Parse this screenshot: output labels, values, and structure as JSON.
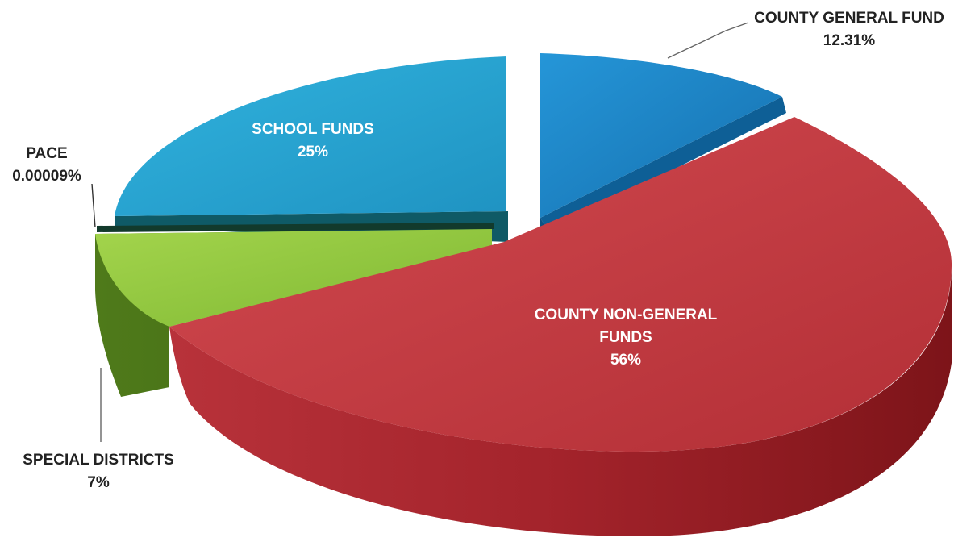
{
  "chart_data": {
    "type": "pie",
    "title": "",
    "slices": [
      {
        "label": "COUNTY GENERAL FUND",
        "value_label": "12.31%",
        "value": 12.31,
        "color": "#1a86c8"
      },
      {
        "label": "COUNTY NON-GENERAL FUNDS",
        "value_label": "56%",
        "value": 56,
        "color": "#c23a41"
      },
      {
        "label": "SPECIAL DISTRICTS",
        "value_label": "7%",
        "value": 7,
        "color": "#8dc63f"
      },
      {
        "label": "PACE",
        "value_label": "0.00009%",
        "value": 9e-05,
        "color": "#1f4e3a"
      },
      {
        "label": "SCHOOL FUNDS",
        "value_label": "25%",
        "value": 25,
        "color": "#2aa4d0"
      }
    ]
  }
}
